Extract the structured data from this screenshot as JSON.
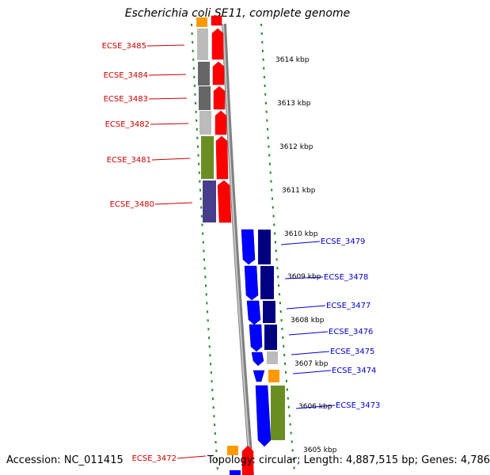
{
  "title": "Escherichia coli SE11, complete genome",
  "footer": {
    "accession": "Accession: NC_011415",
    "topology": "Topology: circular; Length: 4,887,515 bp; Genes: 4,786"
  },
  "ticks": [
    "3614 kbp",
    "3613 kbp",
    "3612 kbp",
    "3611 kbp",
    "3610 kbp",
    "3609 kbp",
    "3608 kbp",
    "3607 kbp",
    "3606 kbp",
    "3605 kbp"
  ],
  "reverse_genes": [
    "ECSE_3485",
    "ECSE_3484",
    "ECSE_3483",
    "ECSE_3482",
    "ECSE_3481",
    "ECSE_3480",
    "ECSE_3472"
  ],
  "forward_genes": [
    "ECSE_3479",
    "ECSE_3478",
    "ECSE_3477",
    "ECSE_3476",
    "ECSE_3475",
    "ECSE_3474",
    "ECSE_3473"
  ],
  "colors": {
    "reverse_strand": "#ff0000",
    "forward_strand": "#0000ff",
    "reverse_label": "#cc0000",
    "forward_label": "#0000cc",
    "backbone": "#808080",
    "gc_dots": "#228b22",
    "orange": "#ff9900",
    "olive": "#6b8e23",
    "navy": "#000080",
    "slate": "#483d8b"
  }
}
